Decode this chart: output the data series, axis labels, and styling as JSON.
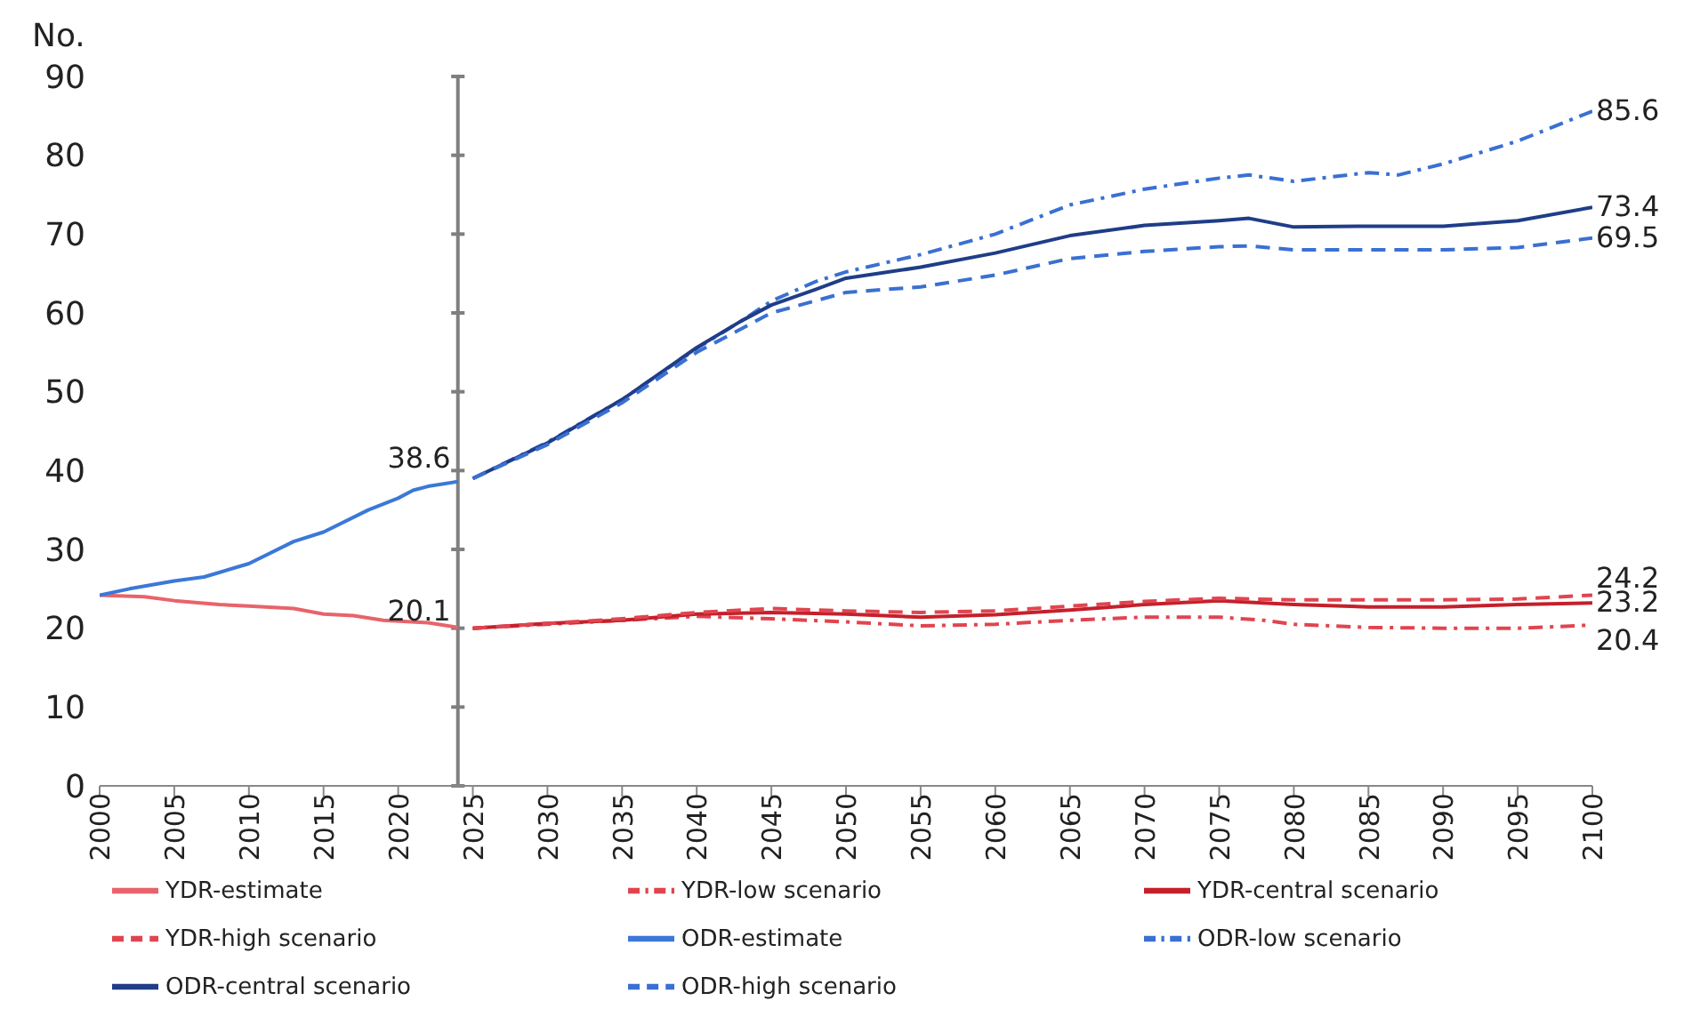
{
  "chart_data": {
    "type": "line",
    "ylabel": "No.",
    "xlim": [
      2000,
      2100
    ],
    "xticks": [
      2000,
      2005,
      2010,
      2015,
      2020,
      2025,
      2030,
      2035,
      2040,
      2045,
      2050,
      2055,
      2060,
      2065,
      2070,
      2075,
      2080,
      2085,
      2090,
      2095,
      2100
    ],
    "ylim": [
      0,
      90
    ],
    "yticks": [
      0,
      10,
      20,
      30,
      40,
      50,
      60,
      70,
      80,
      90
    ],
    "grid": false,
    "legend": "bottom",
    "ref_lines": [
      {
        "axis": "x",
        "value": 2024,
        "label": null,
        "color": "#7f7f7f"
      }
    ],
    "series": [
      {
        "name": "YDR-estimate",
        "color": "#e8636b",
        "line_style": "solid",
        "x": [
          2000,
          2003,
          2005,
          2008,
          2010,
          2013,
          2015,
          2017,
          2019,
          2022,
          2024
        ],
        "values": [
          24.2,
          24,
          23.5,
          23,
          22.8,
          22.5,
          21.8,
          21.6,
          21,
          20.7,
          20.1
        ],
        "value_labels": [
          null,
          null,
          null,
          null,
          null,
          null,
          null,
          null,
          null,
          null,
          "20.1"
        ]
      },
      {
        "name": "YDR-low scenario",
        "color": "#e0454f",
        "line_style": "dashdot",
        "x": [
          2025,
          2030,
          2035,
          2040,
          2045,
          2050,
          2055,
          2060,
          2065,
          2070,
          2075,
          2078,
          2080,
          2085,
          2090,
          2095,
          2100
        ],
        "values": [
          20,
          20.5,
          21,
          21.5,
          21.2,
          20.8,
          20.3,
          20.5,
          21,
          21.4,
          21.4,
          21,
          20.5,
          20.1,
          20,
          20,
          20.4
        ],
        "value_labels": [
          null,
          null,
          null,
          null,
          null,
          null,
          null,
          null,
          null,
          null,
          null,
          null,
          null,
          null,
          null,
          null,
          "20.4"
        ]
      },
      {
        "name": "YDR-central scenario",
        "color": "#c4202b",
        "line_style": "solid",
        "x": [
          2025,
          2030,
          2035,
          2040,
          2045,
          2050,
          2055,
          2060,
          2065,
          2070,
          2075,
          2080,
          2085,
          2090,
          2095,
          2100
        ],
        "values": [
          20,
          20.6,
          21,
          21.8,
          22,
          21.8,
          21.4,
          21.7,
          22.3,
          23,
          23.5,
          23,
          22.7,
          22.7,
          23,
          23.2
        ],
        "value_labels": [
          null,
          null,
          null,
          null,
          null,
          null,
          null,
          null,
          null,
          null,
          null,
          null,
          null,
          null,
          null,
          "23.2"
        ]
      },
      {
        "name": "YDR-high scenario",
        "color": "#e0454f",
        "line_style": "dashed",
        "x": [
          2025,
          2030,
          2035,
          2040,
          2045,
          2050,
          2055,
          2060,
          2065,
          2070,
          2075,
          2080,
          2090,
          2095,
          2100
        ],
        "values": [
          20,
          20.6,
          21.2,
          22,
          22.5,
          22.2,
          22,
          22.2,
          22.8,
          23.4,
          23.8,
          23.6,
          23.6,
          23.7,
          24.2
        ],
        "value_labels": [
          null,
          null,
          null,
          null,
          null,
          null,
          null,
          null,
          null,
          null,
          null,
          null,
          null,
          null,
          "24.2"
        ]
      },
      {
        "name": "ODR-estimate",
        "color": "#3b78d8",
        "line_style": "solid",
        "x": [
          2000,
          2002,
          2005,
          2007,
          2010,
          2013,
          2015,
          2018,
          2020,
          2021,
          2022,
          2024
        ],
        "values": [
          24.2,
          25,
          26,
          26.5,
          28.2,
          31,
          32.2,
          35,
          36.5,
          37.5,
          38,
          38.6
        ],
        "value_labels": [
          null,
          null,
          null,
          null,
          null,
          null,
          null,
          null,
          null,
          null,
          null,
          "38.6"
        ]
      },
      {
        "name": "ODR-low scenario",
        "color": "#3a70d2",
        "line_style": "dashdot",
        "x": [
          2025,
          2030,
          2035,
          2040,
          2043,
          2045,
          2048,
          2050,
          2055,
          2060,
          2065,
          2070,
          2075,
          2077,
          2080,
          2085,
          2087,
          2090,
          2095,
          2100
        ],
        "values": [
          39,
          43.6,
          49,
          55.5,
          59,
          61.5,
          64,
          65.2,
          67.4,
          70,
          73.7,
          75.7,
          77.1,
          77.5,
          76.7,
          77.8,
          77.5,
          78.9,
          81.8,
          85.6
        ],
        "value_labels": [
          null,
          null,
          null,
          null,
          null,
          null,
          null,
          null,
          null,
          null,
          null,
          null,
          null,
          null,
          null,
          null,
          null,
          null,
          null,
          "85.6"
        ]
      },
      {
        "name": "ODR-central scenario",
        "color": "#1f3d88",
        "line_style": "solid",
        "x": [
          2025,
          2030,
          2035,
          2040,
          2043,
          2045,
          2048,
          2050,
          2055,
          2060,
          2065,
          2070,
          2075,
          2077,
          2080,
          2085,
          2090,
          2095,
          2100
        ],
        "values": [
          39,
          43.5,
          49,
          55.6,
          59,
          61,
          63,
          64.4,
          65.8,
          67.6,
          69.8,
          71.1,
          71.7,
          72,
          70.9,
          71,
          71,
          71.7,
          73.4
        ],
        "value_labels": [
          null,
          null,
          null,
          null,
          null,
          null,
          null,
          null,
          null,
          null,
          null,
          null,
          null,
          null,
          null,
          null,
          null,
          null,
          "73.4"
        ]
      },
      {
        "name": "ODR-high scenario",
        "color": "#3a70d2",
        "line_style": "dashed",
        "x": [
          2025,
          2030,
          2035,
          2040,
          2045,
          2050,
          2055,
          2060,
          2065,
          2070,
          2075,
          2077,
          2080,
          2090,
          2095,
          2100
        ],
        "values": [
          39,
          43.3,
          48.6,
          55,
          60,
          62.6,
          63.3,
          64.8,
          66.9,
          67.8,
          68.4,
          68.5,
          68,
          68,
          68.3,
          69.5
        ],
        "value_labels": [
          null,
          null,
          null,
          null,
          null,
          null,
          null,
          null,
          null,
          null,
          null,
          null,
          null,
          null,
          null,
          "69.5"
        ]
      }
    ]
  }
}
